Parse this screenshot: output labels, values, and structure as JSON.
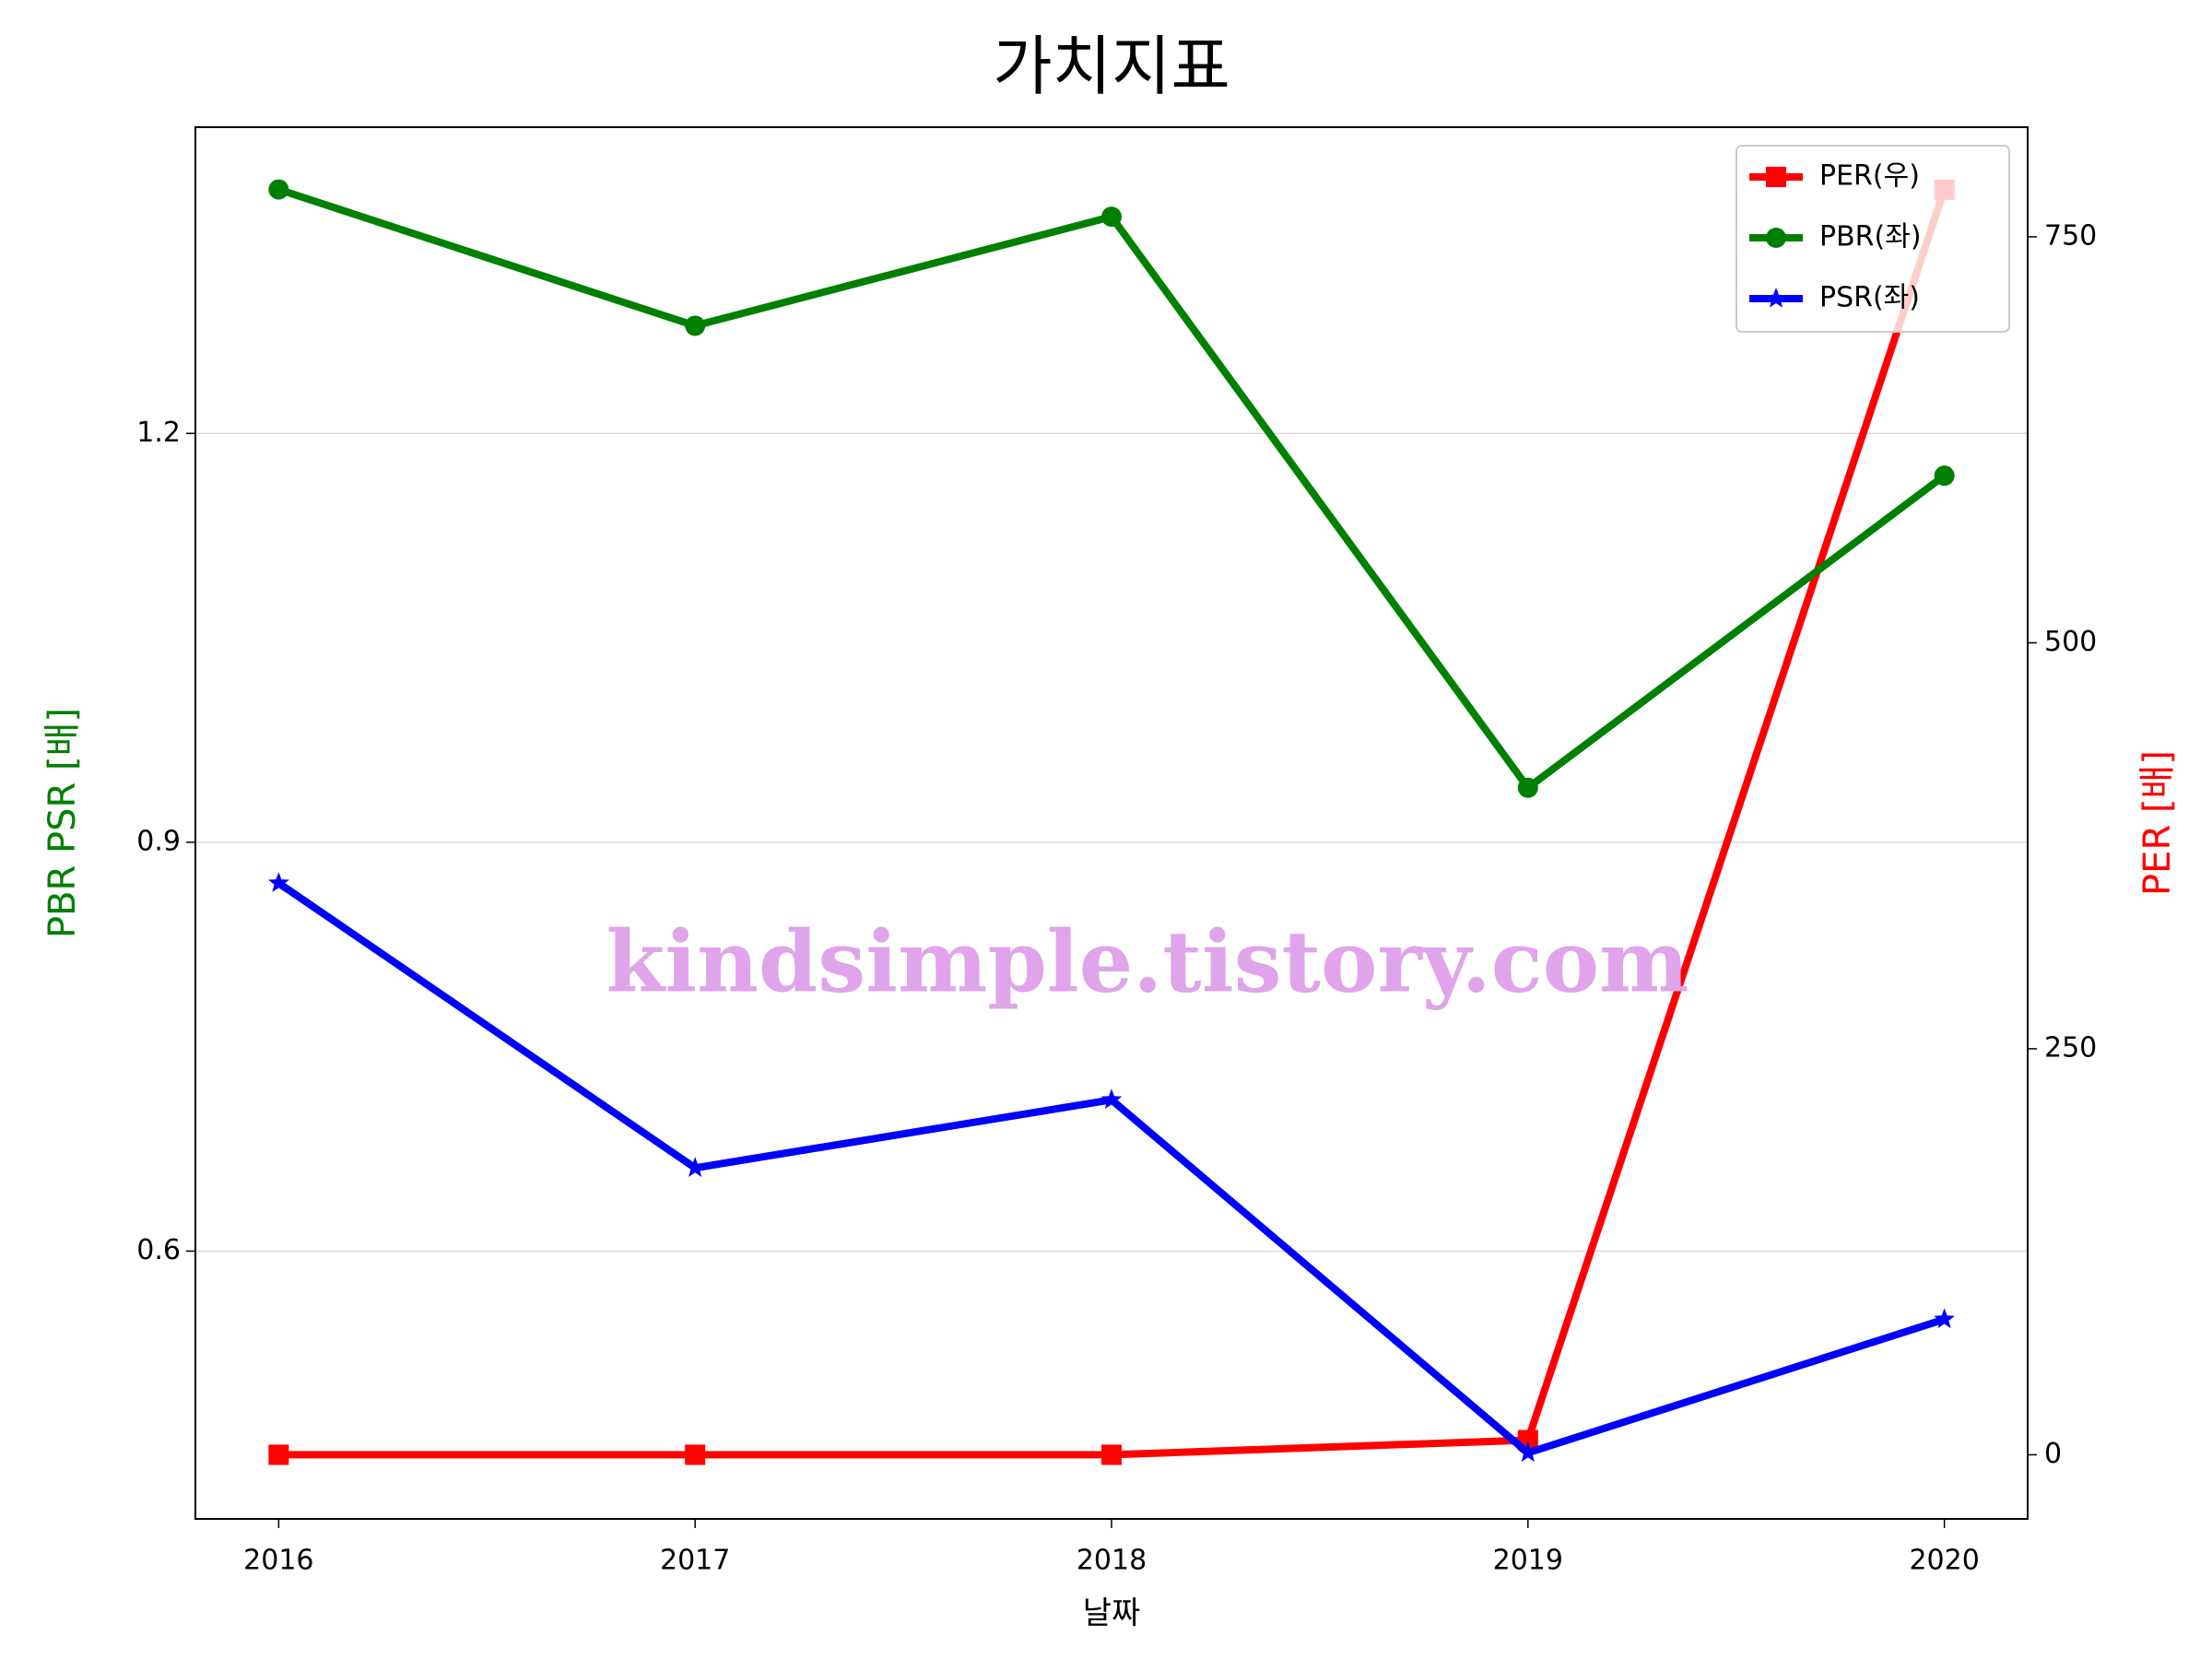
{
  "chart_data": {
    "type": "line",
    "title": "가치지표",
    "xlabel": "날짜",
    "ylabel": "PBR PSR [배]",
    "y2label": "PER [배]",
    "watermark": "kindsimple.tistory.com",
    "x": [
      2016,
      2017,
      2018,
      2019,
      2020
    ],
    "xlim": [
      2015.8,
      2020.2
    ],
    "xticks": [
      2016,
      2017,
      2018,
      2019,
      2020
    ],
    "ylim": [
      0.4035,
      1.4247
    ],
    "yticks": [
      0.6,
      0.9,
      1.2
    ],
    "y2lim": [
      -39.5,
      817.5
    ],
    "y2ticks": [
      0,
      250,
      500,
      750
    ],
    "grid": true,
    "legend": "upper right",
    "series": [
      {
        "name": "PER(우)",
        "color": "#ff0000",
        "marker": "square",
        "axis": "y2",
        "values": [
          0,
          0,
          0,
          9,
          779
        ]
      },
      {
        "name": "PBR(좌)",
        "color": "#008000",
        "marker": "circle",
        "axis": "y",
        "values": [
          1.379,
          1.279,
          1.359,
          0.94,
          1.169
        ]
      },
      {
        "name": "PSR(좌)",
        "color": "#0000ff",
        "marker": "star",
        "axis": "y",
        "values": [
          0.87,
          0.661,
          0.711,
          0.452,
          0.55
        ]
      }
    ]
  }
}
